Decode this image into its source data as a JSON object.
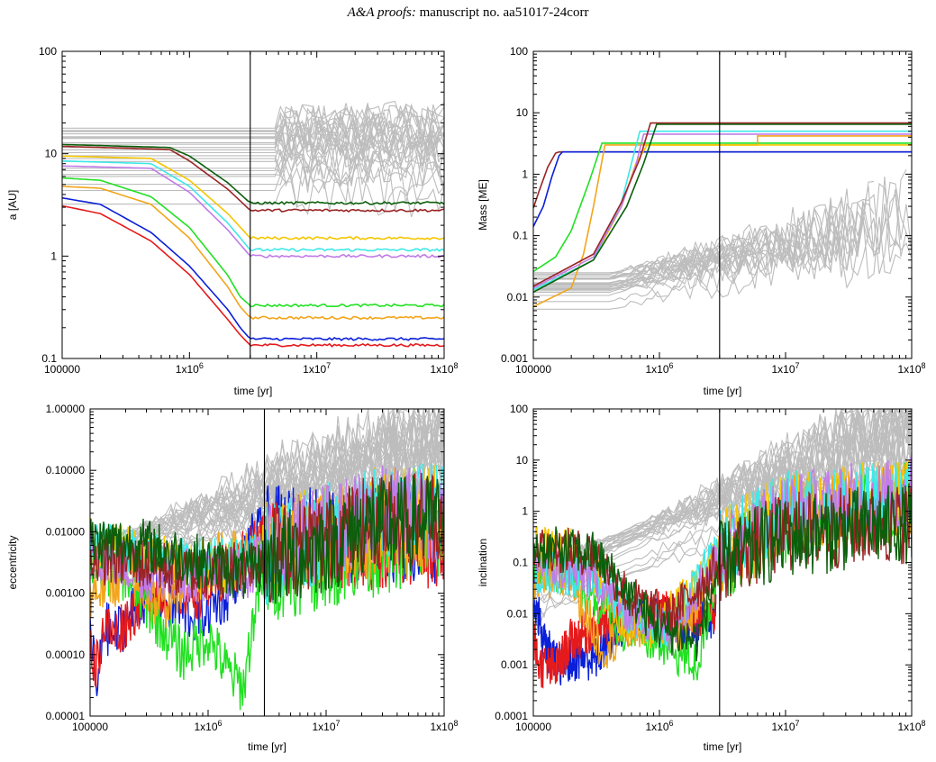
{
  "header": {
    "journal": "A&A proofs:",
    "manuscript": "manuscript no. aa51017-24corr"
  },
  "colors": {
    "background_planets": "#bdbdbd",
    "red": "#e41a1c",
    "blue": "#0a1fd8",
    "light_green": "#22e022",
    "orange": "#f2a51a",
    "light_blue": "#3ee8e8",
    "violet": "#c07ce8",
    "yellow": "#f5c600",
    "dark_red": "#9a2424",
    "dark_green": "#0b5e0b",
    "disc_dispersal_line": "#000000"
  },
  "chart_data": [
    {
      "id": "semi-major-axis",
      "type": "line",
      "xlabel": "time [yr]",
      "ylabel": "a [AU]",
      "xscale": "log",
      "yscale": "log",
      "xlim": [
        100000,
        100000000
      ],
      "ylim": [
        0.1,
        100
      ],
      "xticks": [
        "100000",
        "1x10^6",
        "1x10^7",
        "1x10^8"
      ],
      "yticks": [
        "0.1",
        "1",
        "10",
        "100"
      ],
      "vline_x": 3000000,
      "grid": false,
      "series": [
        {
          "color": "blue",
          "x": [
            100000,
            200000,
            500000,
            1000000,
            2000000,
            2500000,
            3000000,
            100000000
          ],
          "y": [
            3.7,
            3.2,
            1.7,
            0.8,
            0.3,
            0.2,
            0.155,
            0.155
          ]
        },
        {
          "color": "red",
          "x": [
            100000,
            200000,
            500000,
            1000000,
            2000000,
            2500000,
            3000000,
            100000000
          ],
          "y": [
            3.1,
            2.6,
            1.4,
            0.66,
            0.24,
            0.17,
            0.135,
            0.135
          ]
        },
        {
          "color": "light_green",
          "x": [
            100000,
            200000,
            500000,
            1000000,
            2000000,
            2500000,
            3000000,
            100000000
          ],
          "y": [
            5.8,
            5.5,
            3.8,
            1.9,
            0.65,
            0.4,
            0.33,
            0.33
          ]
        },
        {
          "color": "orange",
          "x": [
            100000,
            200000,
            500000,
            1000000,
            2000000,
            2500000,
            3000000,
            100000000
          ],
          "y": [
            4.8,
            4.6,
            3.2,
            1.5,
            0.5,
            0.32,
            0.25,
            0.25
          ]
        },
        {
          "color": "yellow",
          "x": [
            100000,
            500000,
            1000000,
            2000000,
            3000000,
            100000000
          ],
          "y": [
            9.5,
            9.0,
            5.5,
            2.6,
            1.5,
            1.5
          ]
        },
        {
          "color": "light_blue",
          "x": [
            100000,
            500000,
            1000000,
            2000000,
            3000000,
            100000000
          ],
          "y": [
            8.5,
            8.0,
            4.8,
            2.1,
            1.15,
            1.15
          ]
        },
        {
          "color": "violet",
          "x": [
            100000,
            500000,
            1000000,
            2000000,
            3000000,
            100000000
          ],
          "y": [
            7.6,
            7.2,
            4.2,
            1.8,
            1.0,
            1.0
          ]
        },
        {
          "color": "dark_red",
          "x": [
            100000,
            700000,
            1000000,
            2000000,
            3000000,
            100000000
          ],
          "y": [
            11.8,
            11.0,
            8.5,
            4.5,
            2.8,
            2.8
          ]
        },
        {
          "color": "dark_green",
          "x": [
            100000,
            700000,
            1000000,
            2000000,
            3000000,
            100000000
          ],
          "y": [
            12.3,
            11.5,
            9.5,
            5.2,
            3.3,
            3.3
          ]
        }
      ]
    },
    {
      "id": "mass",
      "type": "line",
      "xlabel": "time [yr]",
      "ylabel": "Mass [ME]",
      "xscale": "log",
      "yscale": "log",
      "xlim": [
        100000,
        100000000
      ],
      "ylim": [
        0.001,
        100
      ],
      "xticks": [
        "100000",
        "1x10^6",
        "1x10^7",
        "1x10^8"
      ],
      "yticks": [
        "0.001",
        "0.01",
        "0.1",
        "1",
        "10",
        "100"
      ],
      "vline_x": 3000000,
      "grid": false,
      "series": [
        {
          "color": "dark_red",
          "x": [
            100000,
            110000,
            130000,
            150000,
            160000,
            100000000
          ],
          "y": [
            0.28,
            0.5,
            1.3,
            2.2,
            2.3,
            2.3
          ]
        },
        {
          "color": "blue",
          "x": [
            100000,
            120000,
            140000,
            160000,
            170000,
            100000000
          ],
          "y": [
            0.14,
            0.3,
            0.9,
            2.0,
            2.3,
            2.3
          ]
        },
        {
          "color": "light_green",
          "x": [
            100000,
            150000,
            200000,
            280000,
            350000,
            100000000
          ],
          "y": [
            0.026,
            0.045,
            0.12,
            0.8,
            3.2,
            3.2
          ]
        },
        {
          "color": "orange",
          "x": [
            100000,
            200000,
            250000,
            300000,
            370000,
            6000000,
            6000000,
            100000000
          ],
          "y": [
            0.007,
            0.014,
            0.05,
            0.3,
            3.0,
            3.0,
            4.2,
            4.2
          ]
        },
        {
          "color": "yellow",
          "x": [
            100000,
            300000,
            500000,
            650000,
            800000,
            100000000
          ],
          "y": [
            0.013,
            0.04,
            0.3,
            1.5,
            3.0,
            3.0
          ]
        },
        {
          "color": "light_blue",
          "x": [
            100000,
            300000,
            500000,
            600000,
            700000,
            100000000
          ],
          "y": [
            0.013,
            0.04,
            0.35,
            1.5,
            5.0,
            5.0
          ]
        },
        {
          "color": "violet",
          "x": [
            100000,
            300000,
            500000,
            650000,
            750000,
            100000000
          ],
          "y": [
            0.014,
            0.045,
            0.3,
            1.4,
            4.5,
            4.5
          ]
        },
        {
          "color": "dark_red",
          "x": [
            100000,
            300000,
            500000,
            700000,
            850000,
            100000000
          ],
          "y": [
            0.015,
            0.05,
            0.35,
            1.8,
            6.8,
            6.8
          ]
        },
        {
          "color": "dark_green",
          "x": [
            100000,
            300000,
            550000,
            750000,
            950000,
            100000000
          ],
          "y": [
            0.012,
            0.04,
            0.3,
            1.5,
            6.5,
            6.5
          ]
        }
      ]
    },
    {
      "id": "eccentricity",
      "type": "line",
      "xlabel": "time [yr]",
      "ylabel": "eccentricity",
      "xscale": "log",
      "yscale": "log",
      "xlim": [
        100000,
        100000000
      ],
      "ylim": [
        1e-05,
        1
      ],
      "xticks": [
        "100000",
        "1x10^6",
        "1x10^7",
        "1x10^8"
      ],
      "yticks": [
        "0.00001",
        "0.00010",
        "0.00100",
        "0.01000",
        "0.10000",
        "1.00000"
      ],
      "vline_x": 3000000,
      "grid": false,
      "series": [
        {
          "color": "blue",
          "x": [
            100000,
            115000,
            130000,
            160000,
            300000,
            800000,
            1500000,
            2000000,
            2500000,
            100000000
          ],
          "y": [
            0.0003,
            2e-05,
            0.0003,
            0.0002,
            0.001,
            0.0004,
            0.001,
            0.004,
            0.009,
            0.009
          ]
        },
        {
          "color": "red",
          "x": [
            100000,
            110000,
            130000,
            160000,
            300000,
            800000,
            1500000,
            2000000,
            2500000,
            100000000
          ],
          "y": [
            0.0002,
            5e-05,
            0.0003,
            0.0002,
            0.001,
            0.001,
            0.002,
            0.004,
            0.007,
            0.007
          ]
        },
        {
          "color": "light_green",
          "x": [
            100000,
            200000,
            400000,
            600000,
            1000000,
            1500000,
            2000000,
            2500000,
            3000000,
            100000000
          ],
          "y": [
            0.003,
            0.002,
            0.0003,
            0.0001,
            0.0002,
            5e-05,
            3e-05,
            0.0006,
            0.002,
            0.01
          ]
        },
        {
          "color": "orange",
          "x": [
            100000,
            200000,
            400000,
            800000,
            1500000,
            3000000,
            10000000,
            100000000
          ],
          "y": [
            0.001,
            0.002,
            0.0006,
            0.003,
            0.004,
            0.004,
            0.01,
            0.01
          ]
        },
        {
          "color": "yellow",
          "x": [
            100000,
            500000,
            1000000,
            2000000,
            3000000,
            10000000,
            30000000,
            100000000
          ],
          "y": [
            0.006,
            0.003,
            0.002,
            0.003,
            0.005,
            0.01,
            0.02,
            0.02
          ]
        },
        {
          "color": "light_blue",
          "x": [
            100000,
            300000,
            800000,
            2000000,
            3000000,
            10000000,
            30000000,
            100000000
          ],
          "y": [
            0.006,
            0.004,
            0.003,
            0.003,
            0.004,
            0.01,
            0.02,
            0.025
          ]
        },
        {
          "color": "violet",
          "x": [
            100000,
            300000,
            800000,
            2000000,
            3000000,
            10000000,
            30000000,
            100000000
          ],
          "y": [
            0.005,
            0.002,
            0.002,
            0.002,
            0.004,
            0.01,
            0.02,
            0.02
          ]
        },
        {
          "color": "dark_red",
          "x": [
            100000,
            300000,
            800000,
            2000000,
            3000000,
            10000000,
            30000000,
            100000000
          ],
          "y": [
            0.004,
            0.003,
            0.002,
            0.003,
            0.004,
            0.008,
            0.015,
            0.02
          ]
        },
        {
          "color": "dark_green",
          "x": [
            100000,
            300000,
            600000,
            1000000,
            2000000,
            3000000,
            10000000,
            20000000,
            100000000
          ],
          "y": [
            0.007,
            0.006,
            0.004,
            0.003,
            0.002,
            0.003,
            0.006,
            0.012,
            0.015
          ]
        }
      ]
    },
    {
      "id": "inclination",
      "type": "line",
      "xlabel": "time [yr]",
      "ylabel": "inclination",
      "xscale": "log",
      "yscale": "log",
      "xlim": [
        100000,
        100000000
      ],
      "ylim": [
        0.0001,
        100
      ],
      "xticks": [
        "100000",
        "1x10^6",
        "1x10^7",
        "1x10^8"
      ],
      "yticks": [
        "0.0001",
        "0.001",
        "0.01",
        "0.1",
        "1",
        "10",
        "100"
      ],
      "vline_x": 3000000,
      "grid": false,
      "series": [
        {
          "color": "blue",
          "x": [
            100000,
            120000,
            150000,
            200000,
            250000,
            300000,
            600000,
            1000000,
            2000000,
            2800000
          ],
          "y": [
            0.03,
            0.003,
            0.001,
            0.0012,
            0.0015,
            0.0012,
            0.01,
            0.008,
            0.006,
            0.01
          ]
        },
        {
          "color": "red",
          "x": [
            100000,
            110000,
            150000,
            200000,
            300000,
            600000,
            1000000,
            2000000,
            2800000
          ],
          "y": [
            0.004,
            0.001,
            0.0008,
            0.003,
            0.005,
            0.008,
            0.01,
            0.01,
            0.012
          ]
        },
        {
          "color": "light_green",
          "x": [
            100000,
            200000,
            300000,
            500000,
            800000,
            1200000,
            2000000,
            3000000,
            10000000,
            100000000
          ],
          "y": [
            0.09,
            0.05,
            0.02,
            0.005,
            0.003,
            0.002,
            0.001,
            0.1,
            0.5,
            1.5
          ]
        },
        {
          "color": "orange",
          "x": [
            100000,
            200000,
            350000,
            500000,
            800000,
            1500000,
            3000000,
            10000000,
            100000000
          ],
          "y": [
            0.04,
            0.045,
            0.002,
            0.004,
            0.006,
            0.005,
            0.1,
            0.8,
            1.5
          ]
        },
        {
          "color": "yellow",
          "x": [
            100000,
            200000,
            300000,
            500000,
            1000000,
            3000000,
            10000000,
            100000000
          ],
          "y": [
            0.2,
            0.18,
            0.06,
            0.008,
            0.005,
            0.2,
            1.0,
            2.0
          ]
        },
        {
          "color": "light_blue",
          "x": [
            100000,
            200000,
            350000,
            600000,
            1200000,
            3000000,
            10000000,
            100000000
          ],
          "y": [
            0.07,
            0.06,
            0.04,
            0.01,
            0.005,
            0.2,
            1.0,
            1.8
          ]
        },
        {
          "color": "violet",
          "x": [
            100000,
            300000,
            600000,
            1200000,
            3000000,
            10000000,
            100000000
          ],
          "y": [
            0.1,
            0.05,
            0.01,
            0.005,
            0.15,
            1.0,
            2.0
          ]
        },
        {
          "color": "dark_red",
          "x": [
            100000,
            300000,
            600000,
            1200000,
            3000000,
            10000000,
            100000000
          ],
          "y": [
            0.2,
            0.15,
            0.02,
            0.008,
            0.1,
            0.4,
            0.6
          ]
        },
        {
          "color": "dark_green",
          "x": [
            100000,
            300000,
            450000,
            600000,
            1000000,
            2000000,
            3000000,
            10000000,
            100000000
          ],
          "y": [
            0.2,
            0.15,
            0.05,
            0.02,
            0.005,
            0.003,
            0.1,
            0.3,
            0.6
          ]
        }
      ]
    }
  ]
}
